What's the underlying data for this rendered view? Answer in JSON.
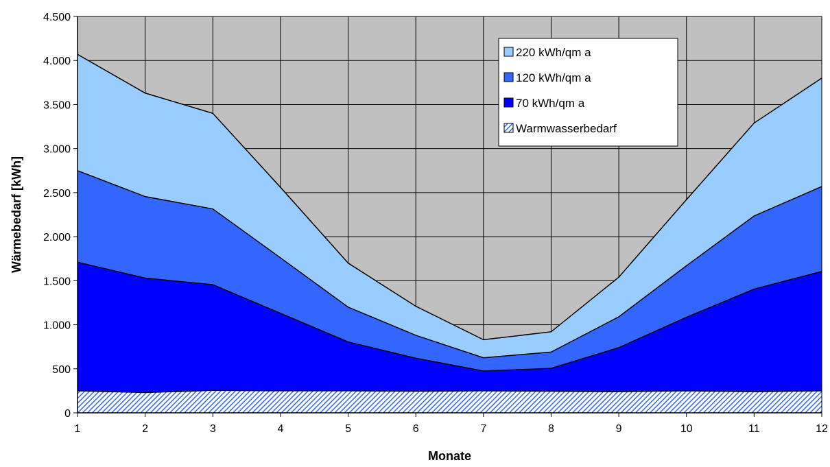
{
  "chart_data": {
    "type": "area",
    "stacked": true,
    "x": [
      1,
      2,
      3,
      4,
      5,
      6,
      7,
      8,
      9,
      10,
      11,
      12
    ],
    "xlabel": "Monate",
    "ylabel": "Wärmebedarf [kWh]",
    "ylim": [
      0,
      4500
    ],
    "yticks": [
      0,
      500,
      1000,
      1500,
      2000,
      2500,
      3000,
      3500,
      4000,
      4500
    ],
    "ytick_labels": [
      "0",
      "500",
      "1.000",
      "1.500",
      "2.000",
      "2.500",
      "3.000",
      "3.500",
      "4.000",
      "4.500"
    ],
    "xtick_labels": [
      "1",
      "2",
      "3",
      "4",
      "5",
      "6",
      "7",
      "8",
      "9",
      "10",
      "11",
      "12"
    ],
    "grid": true,
    "legend_position": "top-right",
    "totals": {
      "Warmwasserbedarf": [
        250,
        230,
        255,
        250,
        250,
        245,
        250,
        245,
        240,
        250,
        240,
        250
      ],
      "70 kWh/qm a": [
        1710,
        1530,
        1455,
        1130,
        805,
        620,
        475,
        505,
        740,
        1085,
        1405,
        1605
      ],
      "120 kWh/qm a": [
        2750,
        2455,
        2315,
        1760,
        1200,
        880,
        625,
        690,
        1090,
        1670,
        2235,
        2570
      ],
      "220 kWh/qm a": [
        4070,
        3630,
        3400,
        2560,
        1700,
        1210,
        830,
        920,
        1540,
        2420,
        3290,
        3800
      ]
    },
    "series": [
      {
        "name": "220 kWh/qm a",
        "color": "#99ccff",
        "pattern": "solid"
      },
      {
        "name": "120 kWh/qm a",
        "color": "#3366ff",
        "pattern": "solid"
      },
      {
        "name": "70 kWh/qm a",
        "color": "#0000ff",
        "pattern": "solid"
      },
      {
        "name": "Warmwasserbedarf",
        "color": "#3366ff",
        "pattern": "hatch"
      }
    ],
    "plot_background": "#c0c0c0"
  }
}
